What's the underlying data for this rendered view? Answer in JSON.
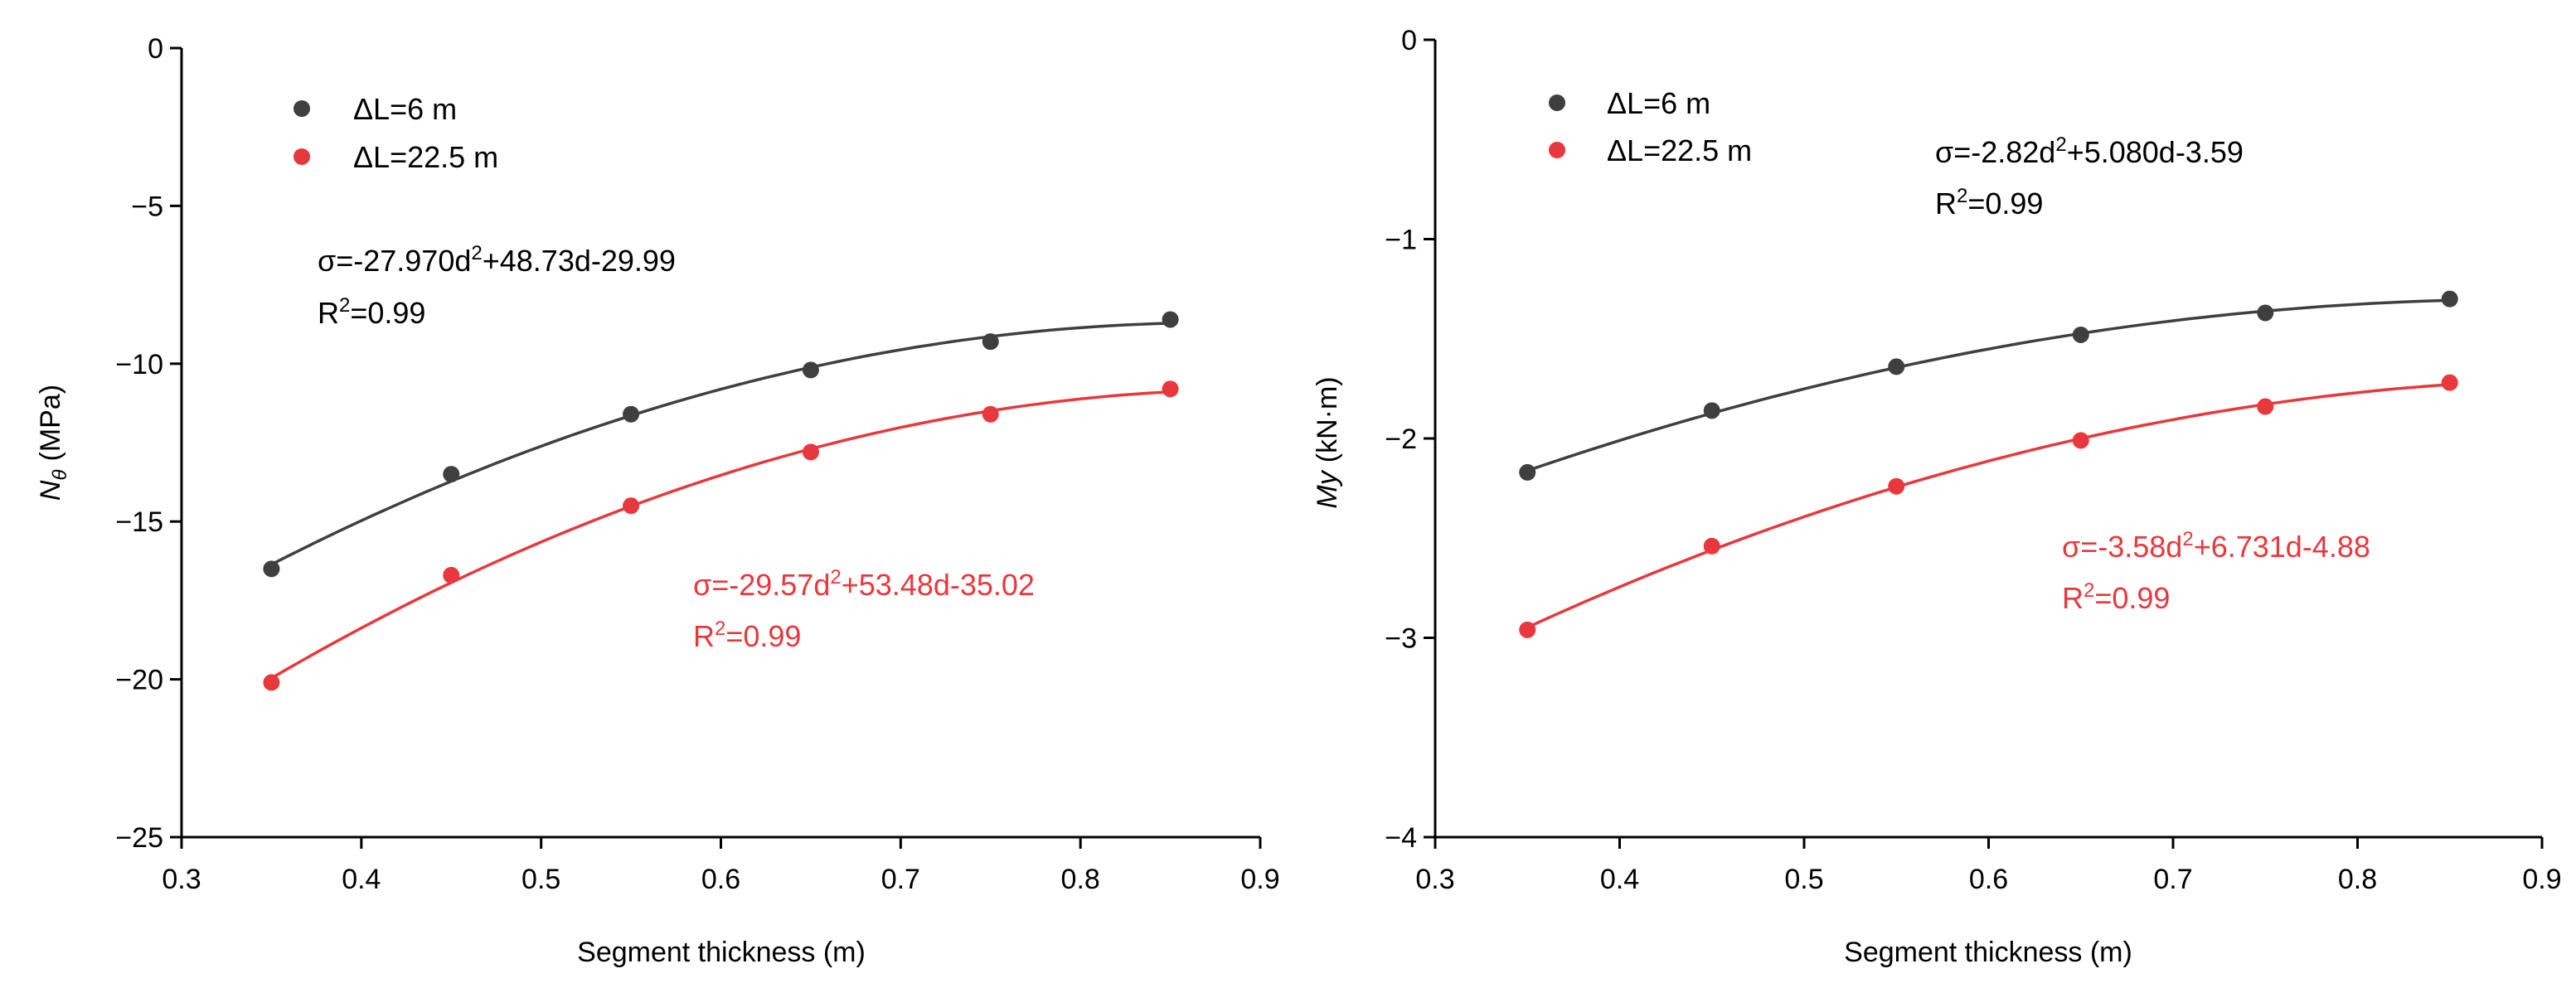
{
  "colors": {
    "series_dark": "#3f3f3f",
    "series_red": "#e8383d",
    "axis": "#000000"
  },
  "chart_data": [
    {
      "type": "line",
      "xlabel": "Segment thickness (m)",
      "ylabel_main": "N",
      "ylabel_sub": "θ",
      "ylabel_unit": "(MPa)",
      "xlim": [
        0.3,
        0.9
      ],
      "ylim": [
        -25,
        0
      ],
      "xticks": [
        "0.3",
        "0.4",
        "0.5",
        "0.6",
        "0.7",
        "0.8",
        "0.9"
      ],
      "yticks": [
        "0",
        "−5",
        "−10",
        "−15",
        "−20",
        "−25"
      ],
      "ytick_values": [
        0,
        -5,
        -10,
        -15,
        -20,
        -25
      ],
      "legend_position": "top-left",
      "series": [
        {
          "name": "ΔL=6 m",
          "color": "#3f3f3f",
          "x": [
            0.35,
            0.45,
            0.55,
            0.65,
            0.75,
            0.85
          ],
          "y": [
            -16.5,
            -13.5,
            -11.6,
            -10.2,
            -9.3,
            -8.6
          ],
          "fit": {
            "a": -27.97,
            "b": 48.73,
            "c": -29.99
          },
          "equation": {
            "main": "σ=-27.970d",
            "sup": "2",
            "tail": "+48.73d-29.99"
          },
          "r2": {
            "main": "R",
            "sup": "2",
            "tail": "=0.99"
          }
        },
        {
          "name": "ΔL=22.5 m",
          "color": "#e8383d",
          "x": [
            0.35,
            0.45,
            0.55,
            0.65,
            0.75,
            0.85
          ],
          "y": [
            -20.1,
            -16.7,
            -14.5,
            -12.8,
            -11.6,
            -10.8
          ],
          "fit": {
            "a": -29.57,
            "b": 53.48,
            "c": -35.02
          },
          "equation": {
            "main": "σ=-29.57d",
            "sup": "2",
            "tail": "+53.48d-35.02"
          },
          "r2": {
            "main": "R",
            "sup": "2",
            "tail": "=0.99"
          }
        }
      ]
    },
    {
      "type": "line",
      "xlabel": "Segment thickness (m)",
      "ylabel_main": "My",
      "ylabel_unit": "(kN·m)",
      "xlim": [
        0.3,
        0.9
      ],
      "ylim": [
        -4,
        0
      ],
      "xticks": [
        "0.3",
        "0.4",
        "0.5",
        "0.6",
        "0.7",
        "0.8",
        "0.9"
      ],
      "yticks": [
        "0",
        "−1",
        "−2",
        "−3",
        "−4"
      ],
      "ytick_values": [
        0,
        -1,
        -2,
        -3,
        -4
      ],
      "legend_position": "top-left",
      "series": [
        {
          "name": "ΔL=6 m",
          "color": "#3f3f3f",
          "x": [
            0.35,
            0.45,
            0.55,
            0.65,
            0.75,
            0.85
          ],
          "y": [
            -2.17,
            -1.86,
            -1.64,
            -1.48,
            -1.37,
            -1.3
          ],
          "fit": {
            "a": -2.82,
            "b": 5.08,
            "c": -3.59
          },
          "equation": {
            "main": "σ=-2.82d",
            "sup": "2",
            "tail": "+5.080d-3.59"
          },
          "r2": {
            "main": "R",
            "sup": "2",
            "tail": "=0.99"
          }
        },
        {
          "name": "ΔL=22.5 m",
          "color": "#e8383d",
          "x": [
            0.35,
            0.45,
            0.55,
            0.65,
            0.75,
            0.85
          ],
          "y": [
            -2.96,
            -2.54,
            -2.24,
            -2.01,
            -1.84,
            -1.72
          ],
          "fit": {
            "a": -3.58,
            "b": 6.731,
            "c": -4.88
          },
          "equation": {
            "main": "σ=-3.58d",
            "sup": "2",
            "tail": "+6.731d-4.88"
          },
          "r2": {
            "main": "R",
            "sup": "2",
            "tail": "=0.99"
          }
        }
      ]
    }
  ]
}
